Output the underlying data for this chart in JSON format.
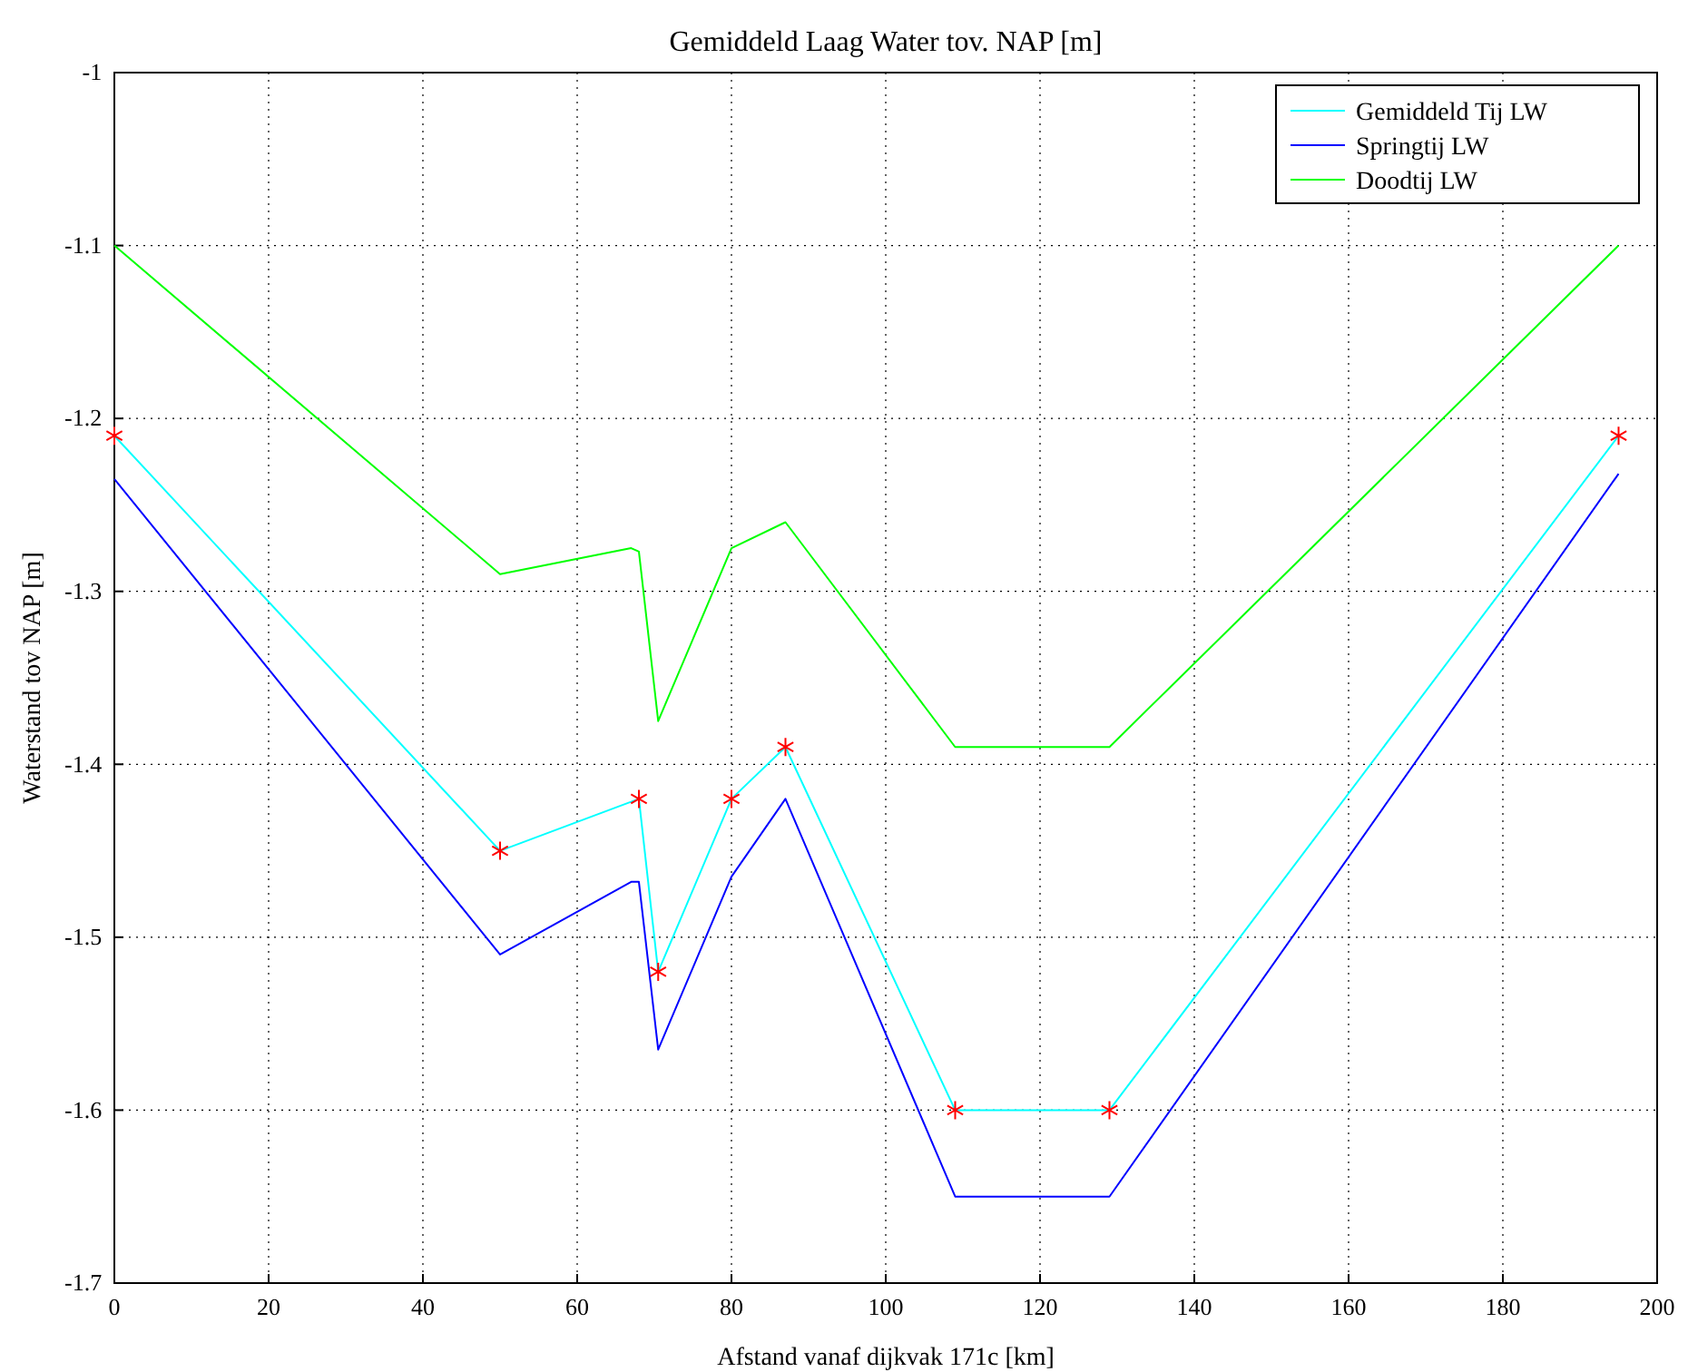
{
  "chart_data": {
    "type": "line",
    "title": "Gemiddeld Laag Water tov. NAP [m]",
    "xlabel": "Afstand vanaf dijkvak 171c [km]",
    "ylabel": "Waterstand tov NAP [m]",
    "xlim": [
      0,
      200
    ],
    "xticks": [
      0,
      20,
      40,
      60,
      80,
      100,
      120,
      140,
      160,
      180,
      200
    ],
    "ylim": [
      -1.7,
      -1
    ],
    "yticks": [
      -1.7,
      -1.6,
      -1.5,
      -1.4,
      -1.3,
      -1.2,
      -1.1,
      -1
    ],
    "grid": true,
    "legend": "top right",
    "line_style": "solid",
    "series": [
      {
        "name": "Gemiddeld Tij LW",
        "color": "#00ffff",
        "x": [
          0,
          50,
          68,
          70.5,
          80,
          87,
          109,
          129,
          195
        ],
        "values": [
          -1.21,
          -1.45,
          -1.42,
          -1.52,
          -1.42,
          -1.39,
          -1.6,
          -1.6,
          -1.21
        ]
      },
      {
        "name": "Springtij LW",
        "color": "#0000ff",
        "x": [
          0,
          50,
          67,
          68,
          70.5,
          80,
          87,
          109,
          129,
          195
        ],
        "values": [
          -1.235,
          -1.51,
          -1.468,
          -1.468,
          -1.565,
          -1.465,
          -1.42,
          -1.65,
          -1.65,
          -1.232
        ]
      },
      {
        "name": "Doodtij LW",
        "color": "#00ff00",
        "x": [
          0,
          50,
          67,
          68,
          70.5,
          80,
          87,
          109,
          129,
          195
        ],
        "values": [
          -1.1,
          -1.29,
          -1.275,
          -1.277,
          -1.375,
          -1.275,
          -1.26,
          -1.39,
          -1.39,
          -1.1
        ]
      },
      {
        "type": "scatter",
        "marker": "cross",
        "color": "#ff0000",
        "x": [
          0,
          50,
          68,
          70.5,
          80,
          87,
          109,
          129,
          195
        ],
        "values": [
          -1.21,
          -1.45,
          -1.42,
          -1.52,
          -1.42,
          -1.39,
          -1.6,
          -1.6,
          -1.21
        ]
      }
    ]
  }
}
